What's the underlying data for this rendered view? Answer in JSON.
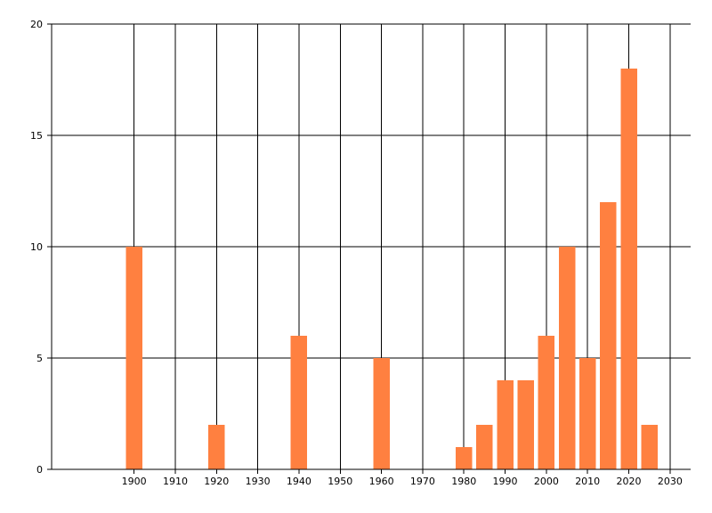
{
  "chart_data": {
    "type": "bar",
    "x": [
      1900,
      1920,
      1940,
      1960,
      1980,
      1985,
      1990,
      1995,
      2000,
      2005,
      2010,
      2015,
      2020,
      2025
    ],
    "values": [
      10,
      2,
      6,
      5,
      1,
      2,
      4,
      4,
      6,
      10,
      5,
      12,
      18,
      2
    ],
    "xlim": [
      1880,
      2035
    ],
    "ylim": [
      0,
      20
    ],
    "x_ticks": [
      1900,
      1910,
      1920,
      1930,
      1940,
      1950,
      1960,
      1970,
      1980,
      1990,
      2000,
      2010,
      2020,
      2030
    ],
    "y_ticks": [
      0,
      5,
      10,
      15,
      20
    ],
    "grid": true,
    "bar_color": "#ff8040",
    "title": "",
    "xlabel": "",
    "ylabel": ""
  }
}
